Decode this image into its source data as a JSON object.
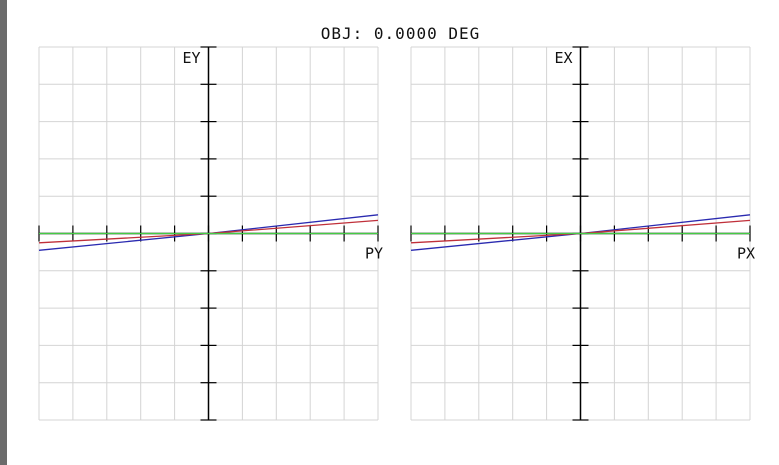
{
  "title": "OBJ: 0.0000 DEG",
  "chart_data": [
    {
      "type": "line",
      "xlabel": "PY",
      "ylabel": "EY",
      "xlim": [
        -1,
        1
      ],
      "ylim": [
        -1,
        1
      ],
      "grid": true,
      "series": [
        {
          "color": "#2a2ab0",
          "x": [
            -1,
            0,
            1
          ],
          "y": [
            -0.09,
            0,
            0.1
          ]
        },
        {
          "color": "#c0303a",
          "x": [
            -1,
            0,
            1
          ],
          "y": [
            -0.05,
            0,
            0.07
          ]
        },
        {
          "color": "#44cc44",
          "x": [
            -1,
            0,
            1
          ],
          "y": [
            0,
            0,
            0
          ]
        }
      ]
    },
    {
      "type": "line",
      "xlabel": "PX",
      "ylabel": "EX",
      "xlim": [
        -1,
        1
      ],
      "ylim": [
        -1,
        1
      ],
      "grid": true,
      "series": [
        {
          "color": "#2a2ab0",
          "x": [
            -1,
            0,
            1
          ],
          "y": [
            -0.09,
            0,
            0.1
          ]
        },
        {
          "color": "#c0303a",
          "x": [
            -1,
            0,
            1
          ],
          "y": [
            -0.05,
            0,
            0.07
          ]
        },
        {
          "color": "#44cc44",
          "x": [
            -1,
            0,
            1
          ],
          "y": [
            0,
            0,
            0
          ]
        }
      ]
    }
  ]
}
